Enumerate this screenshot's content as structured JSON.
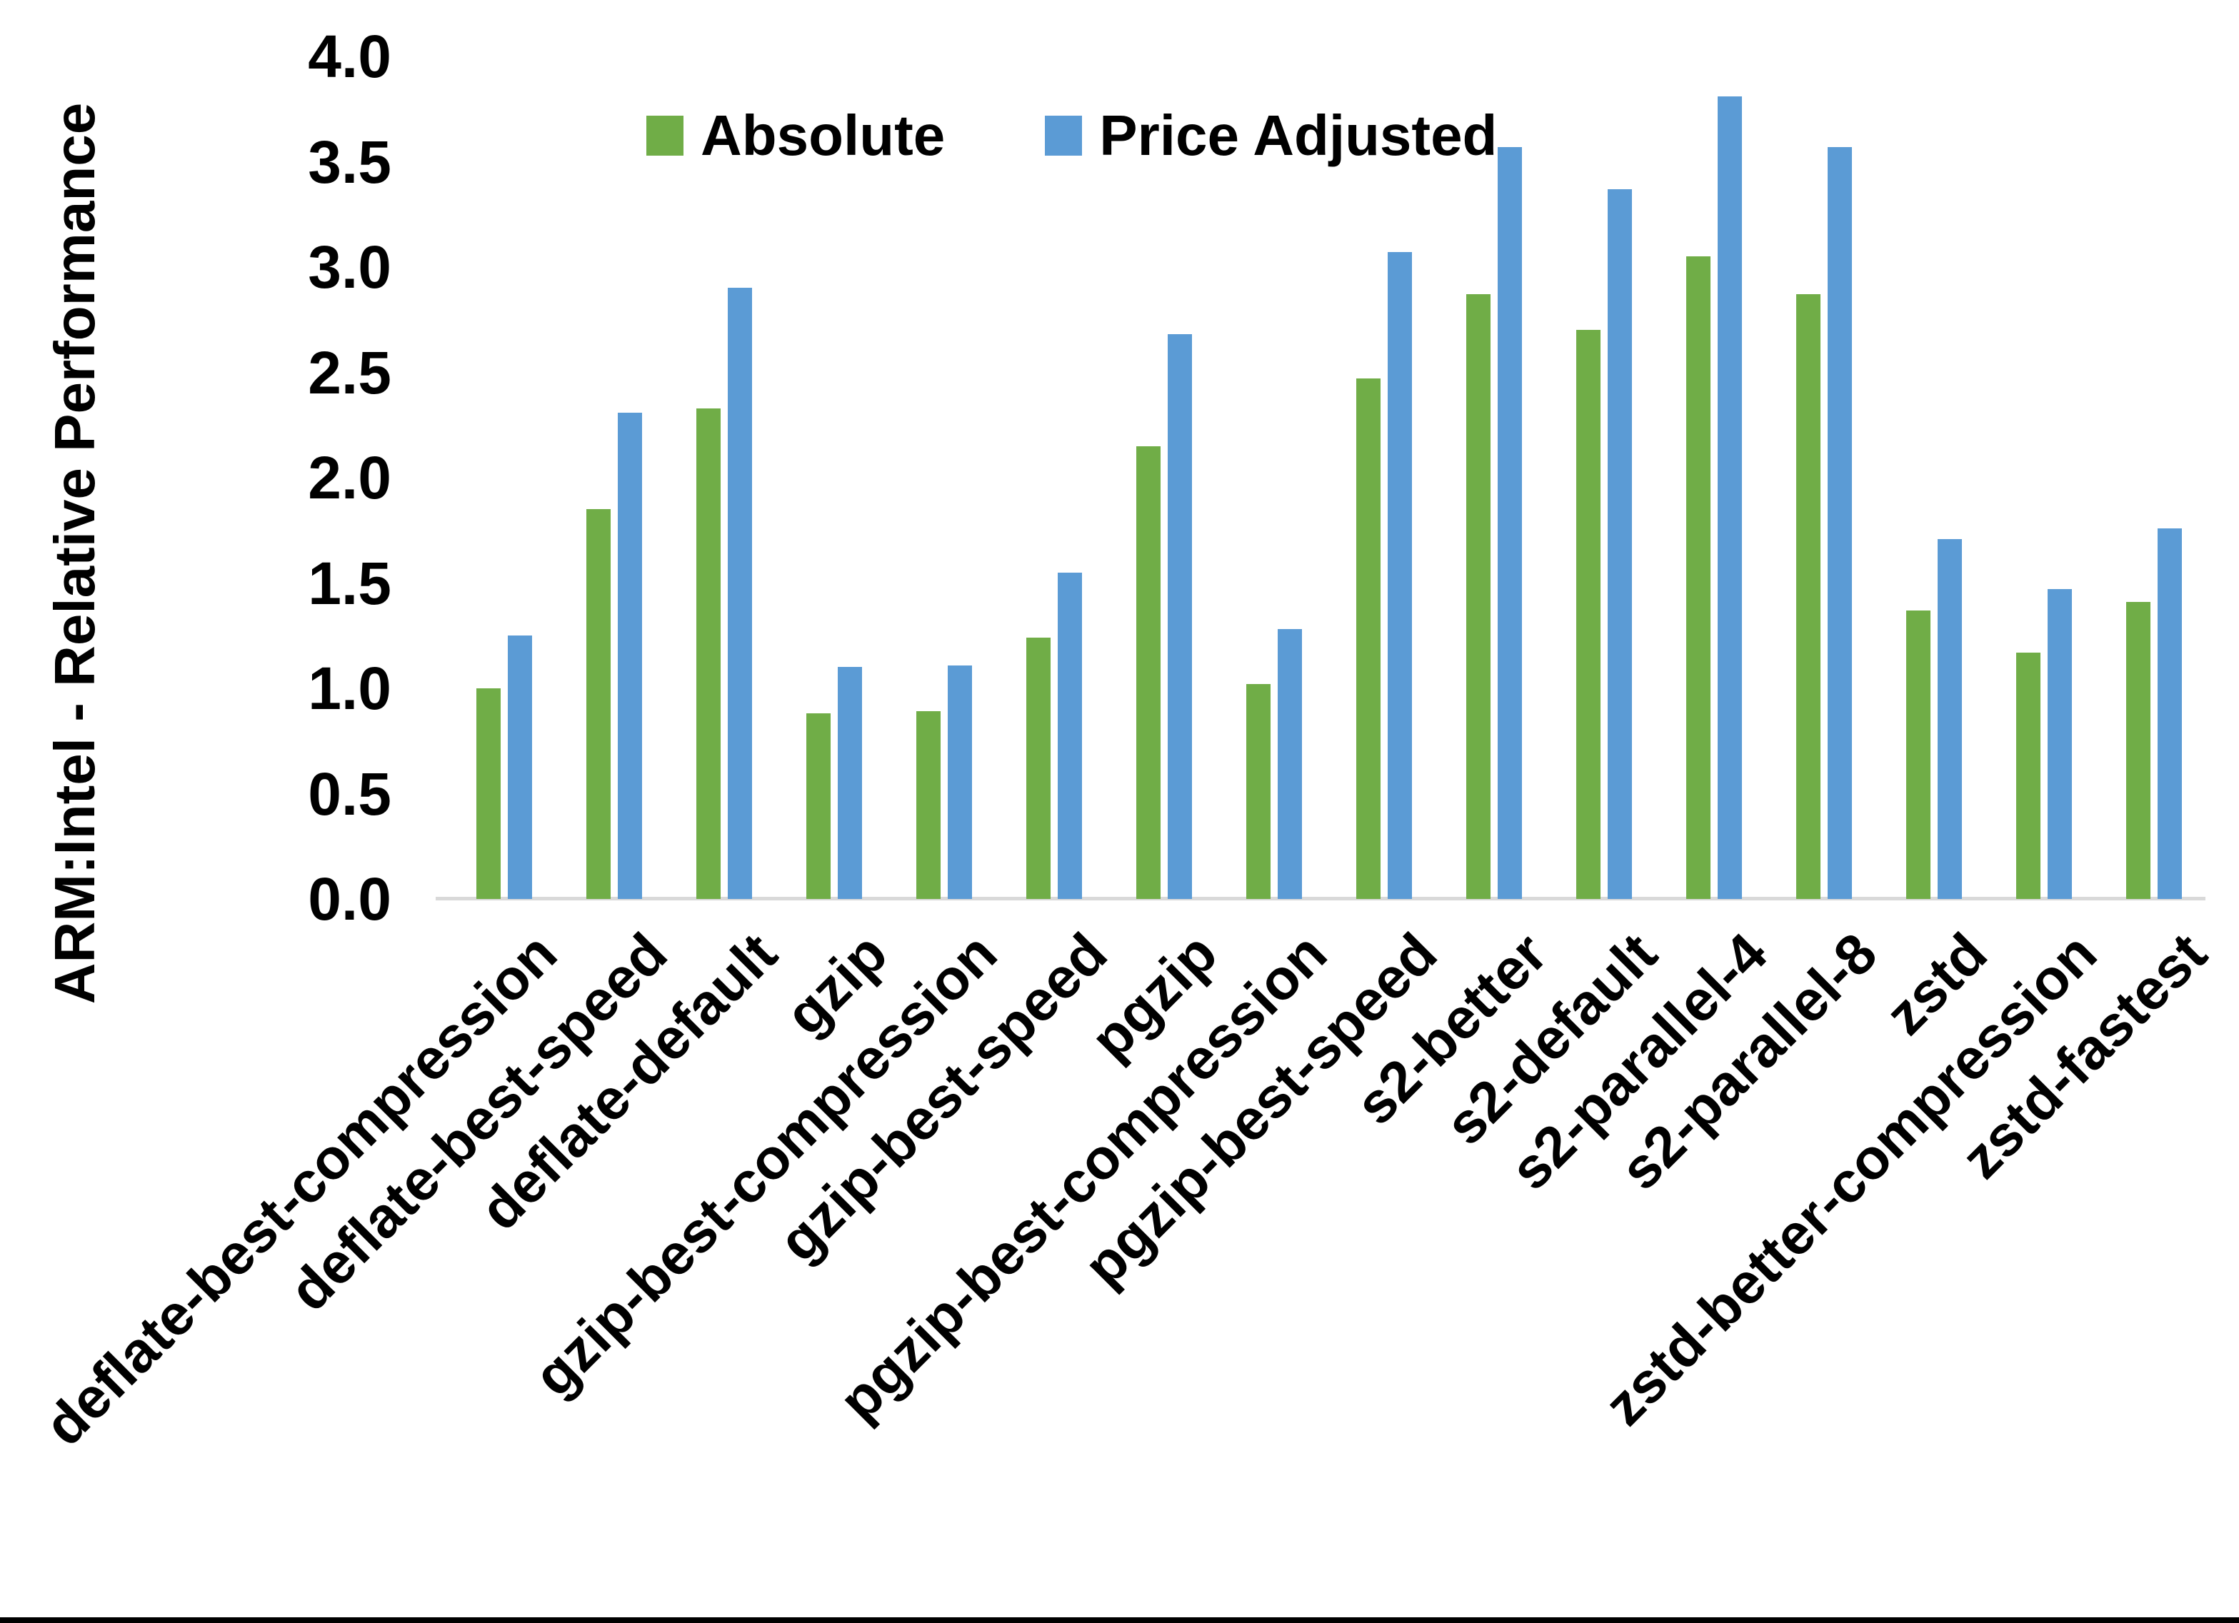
{
  "figure": {
    "background_color": "#ffffff",
    "bottom_border_color": "#000000",
    "baseline_color": "#d9d9d9",
    "text_color": "#000000"
  },
  "chart_data": {
    "type": "bar",
    "title": "",
    "xlabel": "",
    "ylabel": "ARM:Intel - Relative Performance",
    "ylim": [
      0.0,
      4.0
    ],
    "ytick_step": 0.5,
    "yticks": [
      "0.0",
      "0.5",
      "1.0",
      "1.5",
      "2.0",
      "2.5",
      "3.0",
      "3.5",
      "4.0"
    ],
    "grid": false,
    "legend_position": "top-center",
    "categories": [
      "deflate-best-compression",
      "deflate-best-speed",
      "deflate-default",
      "gzip",
      "gzip-best-compression",
      "gzip-best-speed",
      "pgzip",
      "pgzip-best-compression",
      "pgzip-best-speed",
      "s2-better",
      "s2-default",
      "s2-parallel-4",
      "s2-parallel-8",
      "zstd",
      "zstd-better-compression",
      "zstd-fastest"
    ],
    "series": [
      {
        "name": "Absolute",
        "color": "#70AD47",
        "values": [
          1.0,
          1.85,
          2.33,
          0.88,
          0.89,
          1.24,
          2.15,
          1.02,
          2.47,
          2.87,
          2.7,
          3.05,
          2.87,
          1.37,
          1.17,
          1.41
        ]
      },
      {
        "name": "Price Adjusted",
        "color": "#5B9BD5",
        "values": [
          1.25,
          2.31,
          2.9,
          1.1,
          1.11,
          1.55,
          2.68,
          1.28,
          3.07,
          3.57,
          3.37,
          3.81,
          3.57,
          1.71,
          1.47,
          1.76
        ]
      }
    ]
  }
}
